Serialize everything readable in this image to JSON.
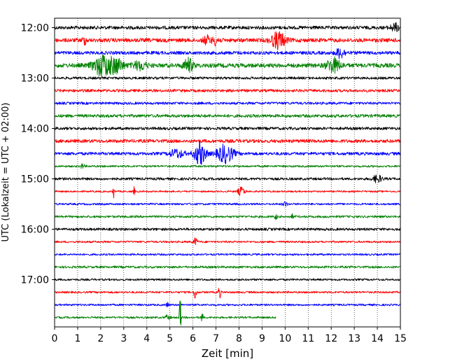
{
  "chart_data": {
    "type": "line",
    "title": "",
    "xlabel": "Zeit  [min]",
    "ylabel": "UTC (Lokalzeit = UTC + 02:00)",
    "xlim": [
      0,
      15
    ],
    "x_ticks": [
      "0",
      "1",
      "2",
      "3",
      "4",
      "5",
      "6",
      "7",
      "8",
      "9",
      "10",
      "11",
      "12",
      "13",
      "14",
      "15"
    ],
    "y_ticks": [
      "12:00",
      "13:00",
      "14:00",
      "15:00",
      "16:00",
      "17:00"
    ],
    "row_interval_minutes": 15,
    "last_trace_end_min": 9.6,
    "grid": "vertical dotted at each minute",
    "colors_cycle": [
      "#000000",
      "#ff0000",
      "#0000ff",
      "#008000"
    ],
    "traces": [
      {
        "start": "12:00",
        "color": "#000000",
        "noise": 2.4,
        "events": [
          {
            "t": 14.8,
            "amp": 5,
            "w": 0.25
          }
        ]
      },
      {
        "start": "12:15",
        "color": "#ff0000",
        "noise": 2.8,
        "events": [
          {
            "t": 1.3,
            "amp": 5,
            "w": 0.1
          },
          {
            "t": 6.6,
            "amp": 6,
            "w": 0.15
          },
          {
            "t": 7.0,
            "amp": 6,
            "w": 0.15
          },
          {
            "t": 9.7,
            "amp": 12,
            "w": 0.3
          }
        ]
      },
      {
        "start": "12:30",
        "color": "#0000ff",
        "noise": 2.4,
        "events": [
          {
            "t": 12.4,
            "amp": 7,
            "w": 0.2
          }
        ]
      },
      {
        "start": "12:45",
        "color": "#008000",
        "noise": 3.0,
        "events": [
          {
            "t": 2.1,
            "amp": 15,
            "w": 0.4
          },
          {
            "t": 2.7,
            "amp": 9,
            "w": 0.3
          },
          {
            "t": 3.7,
            "amp": 6,
            "w": 0.3
          },
          {
            "t": 5.8,
            "amp": 10,
            "w": 0.2
          },
          {
            "t": 12.1,
            "amp": 10,
            "w": 0.3
          }
        ]
      },
      {
        "start": "13:00",
        "color": "#000000",
        "noise": 1.8,
        "events": []
      },
      {
        "start": "13:15",
        "color": "#ff0000",
        "noise": 2.0,
        "events": []
      },
      {
        "start": "13:30",
        "color": "#0000ff",
        "noise": 1.8,
        "events": []
      },
      {
        "start": "13:45",
        "color": "#008000",
        "noise": 2.2,
        "events": []
      },
      {
        "start": "14:00",
        "color": "#000000",
        "noise": 2.0,
        "events": []
      },
      {
        "start": "14:15",
        "color": "#ff0000",
        "noise": 2.4,
        "events": []
      },
      {
        "start": "14:30",
        "color": "#0000ff",
        "noise": 2.2,
        "events": [
          {
            "t": 5.3,
            "amp": 6,
            "w": 0.3
          },
          {
            "t": 6.3,
            "amp": 16,
            "w": 0.25
          },
          {
            "t": 7.4,
            "amp": 13,
            "w": 0.35
          }
        ]
      },
      {
        "start": "14:45",
        "color": "#008000",
        "noise": 1.4,
        "events": [
          {
            "t": 1.2,
            "amp": 3,
            "w": 0.1
          }
        ]
      },
      {
        "start": "15:00",
        "color": "#000000",
        "noise": 1.8,
        "events": [
          {
            "t": 14.0,
            "amp": 5,
            "w": 0.2
          }
        ]
      },
      {
        "start": "15:15",
        "color": "#ff0000",
        "noise": 1.2,
        "events": [
          {
            "t": 2.55,
            "amp": 13,
            "w": 0.03
          },
          {
            "t": 3.45,
            "amp": 8,
            "w": 0.03
          },
          {
            "t": 8.1,
            "amp": 6,
            "w": 0.15
          }
        ]
      },
      {
        "start": "15:30",
        "color": "#0000ff",
        "noise": 1.4,
        "events": [
          {
            "t": 10.0,
            "amp": 3,
            "w": 0.1
          }
        ]
      },
      {
        "start": "15:45",
        "color": "#008000",
        "noise": 1.6,
        "events": [
          {
            "t": 9.6,
            "amp": 4,
            "w": 0.05
          },
          {
            "t": 10.3,
            "amp": 3,
            "w": 0.05
          }
        ]
      },
      {
        "start": "16:00",
        "color": "#000000",
        "noise": 1.8,
        "events": []
      },
      {
        "start": "16:15",
        "color": "#ff0000",
        "noise": 1.4,
        "events": [
          {
            "t": 6.1,
            "amp": 5,
            "w": 0.1
          }
        ]
      },
      {
        "start": "16:30",
        "color": "#0000ff",
        "noise": 1.4,
        "events": []
      },
      {
        "start": "16:45",
        "color": "#008000",
        "noise": 1.6,
        "events": []
      },
      {
        "start": "17:00",
        "color": "#000000",
        "noise": 1.4,
        "events": []
      },
      {
        "start": "17:15",
        "color": "#ff0000",
        "noise": 1.4,
        "events": [
          {
            "t": 6.1,
            "amp": 12,
            "w": 0.05
          },
          {
            "t": 7.15,
            "amp": 10,
            "w": 0.05
          }
        ]
      },
      {
        "start": "17:30",
        "color": "#0000ff",
        "noise": 1.4,
        "events": [
          {
            "t": 4.9,
            "amp": 4,
            "w": 0.05
          }
        ]
      },
      {
        "start": "17:45",
        "color": "#008000",
        "noise": 1.4,
        "events": [
          {
            "t": 5.45,
            "amp": 28,
            "w": 0.04
          },
          {
            "t": 6.4,
            "amp": 8,
            "w": 0.04
          },
          {
            "t": 4.9,
            "amp": 3,
            "w": 0.1
          }
        ]
      }
    ]
  }
}
